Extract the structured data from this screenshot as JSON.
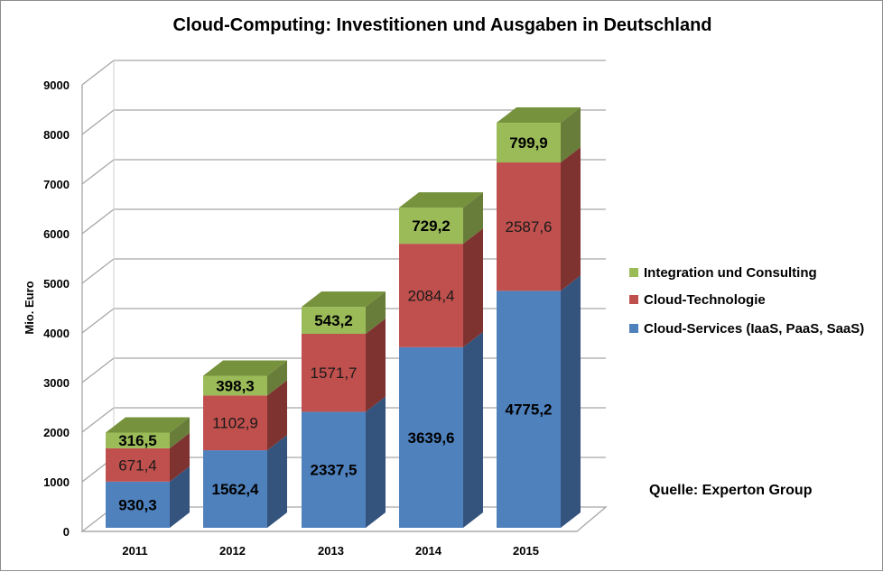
{
  "chart_data": {
    "type": "bar",
    "subtype": "stacked-3d",
    "title": "Cloud-Computing: Investitionen und Ausgaben in Deutschland",
    "xlabel": "",
    "ylabel": "Mio. Euro",
    "ylim": [
      0,
      9000
    ],
    "yticks": [
      0,
      1000,
      2000,
      3000,
      4000,
      5000,
      6000,
      7000,
      8000,
      9000
    ],
    "ytick_labels": [
      "0",
      "1000",
      "2000",
      "3000",
      "4000",
      "5000",
      "6000",
      "7000",
      "8000",
      "9000"
    ],
    "grid": true,
    "categories": [
      "2011",
      "2012",
      "2013",
      "2014",
      "2015"
    ],
    "series": [
      {
        "name": "Cloud-Services (IaaS, PaaS, SaaS)",
        "color": "#4f81bd",
        "side_color": "#34547d",
        "label_weight": "bold",
        "values": [
          930.3,
          1562.4,
          2337.5,
          3639.6,
          4775.2
        ],
        "labels": [
          "930,3",
          "1562,4",
          "2337,5",
          "3639,6",
          "4775,2"
        ]
      },
      {
        "name": "Cloud-Technologie",
        "color": "#c0504d",
        "side_color": "#7f3331",
        "label_weight": "normal",
        "values": [
          671.4,
          1102.9,
          1571.7,
          2084.4,
          2587.6
        ],
        "labels": [
          "671,4",
          "1102,9",
          "1571,7",
          "2084,4",
          "2587,6"
        ]
      },
      {
        "name": "Integration und Consulting",
        "color": "#9bbb59",
        "side_color": "#687d3a",
        "top_color": "#76923c",
        "label_weight": "bold",
        "values": [
          316.5,
          398.3,
          543.2,
          729.2,
          799.9
        ],
        "labels": [
          "316,5",
          "398,3",
          "543,2",
          "729,2",
          "799,9"
        ]
      }
    ],
    "legend": {
      "position": "right",
      "order": [
        "Integration und Consulting",
        "Cloud-Technologie",
        "Cloud-Services (IaaS, PaaS, SaaS)"
      ]
    },
    "annotations": [
      "Quelle: Experton Group"
    ]
  },
  "source_text": "Quelle: Experton Group"
}
